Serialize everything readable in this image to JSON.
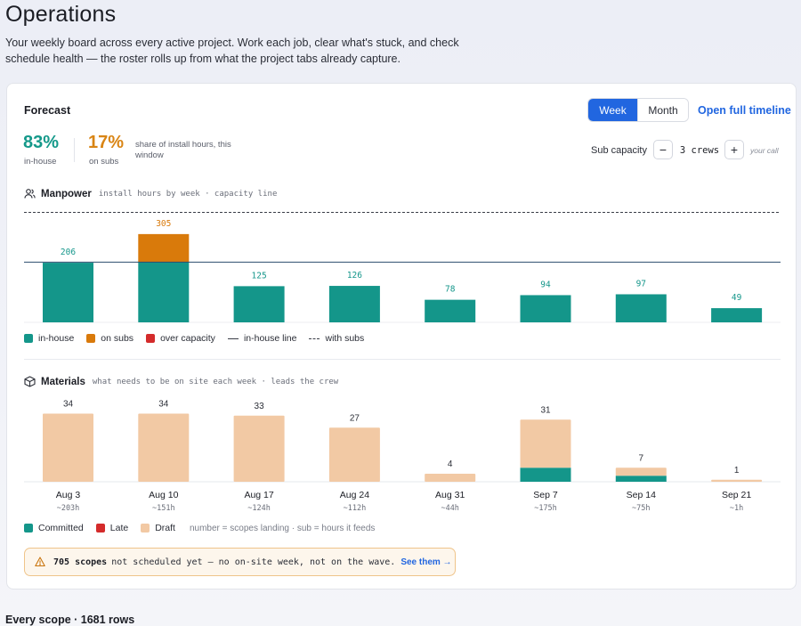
{
  "page": {
    "title": "Operations",
    "subtitle": "Your weekly board across every active project. Work each job, clear what's stuck, and check schedule health — the roster rolls up from what the project tabs already capture."
  },
  "forecast": {
    "title": "Forecast",
    "toggle": {
      "week": "Week",
      "month": "Month",
      "selected": "Week"
    },
    "timeline_link": "Open full timeline",
    "kpis": {
      "inhouse_pct": "83%",
      "inhouse_label": "in-house",
      "subs_pct": "17%",
      "subs_label": "on subs",
      "note": "share of install hours, this window"
    },
    "sub_capacity": {
      "label": "Sub capacity",
      "minus": "−",
      "value": "3 crews",
      "plus": "+",
      "hint": "your call"
    }
  },
  "manpower": {
    "title": "Manpower",
    "caption": "install hours by week · capacity line",
    "legend": {
      "inhouse": "in-house",
      "subs": "on subs",
      "over": "over capacity",
      "line": "in-house line",
      "with_subs": "with subs"
    }
  },
  "materials": {
    "title": "Materials",
    "caption": "what needs to be on site each week · leads the crew",
    "legend": {
      "committed": "Committed",
      "late": "Late",
      "draft": "Draft",
      "note": "number = scopes landing · sub = hours it feeds"
    }
  },
  "warning": {
    "count": "705 scopes",
    "text": "not scheduled yet — no on-site week, not on the wave.",
    "link": "See them →"
  },
  "bottom": {
    "title": "Every scope · 1681 rows"
  },
  "colors": {
    "inhouse": "#14968a",
    "subs": "#d97a0b",
    "over": "#d42b2b",
    "draft": "#f2c9a4",
    "committed": "#14968a",
    "accent": "#2166e0"
  },
  "chart_data": [
    {
      "type": "bar",
      "title": "Manpower",
      "categories": [
        "Aug 3",
        "Aug 10",
        "Aug 17",
        "Aug 24",
        "Aug 31",
        "Sep 7",
        "Sep 14",
        "Sep 21"
      ],
      "series": [
        {
          "name": "in-house",
          "values": [
            206,
            208,
            125,
            126,
            78,
            94,
            97,
            49
          ]
        },
        {
          "name": "on subs",
          "values": [
            0,
            97,
            0,
            0,
            0,
            0,
            0,
            0
          ]
        }
      ],
      "totals": [
        206,
        305,
        125,
        126,
        78,
        94,
        97,
        49
      ],
      "inhouse_line": 208,
      "with_subs_line": 380,
      "ylim": [
        0,
        400
      ],
      "legend": "bottom-left"
    },
    {
      "type": "bar",
      "title": "Materials",
      "categories": [
        "Aug 3",
        "Aug 10",
        "Aug 17",
        "Aug 24",
        "Aug 31",
        "Sep 7",
        "Sep 14",
        "Sep 21"
      ],
      "sublabels": [
        "~203h",
        "~151h",
        "~124h",
        "~112h",
        "~44h",
        "~175h",
        "~75h",
        "~1h"
      ],
      "series": [
        {
          "name": "Committed",
          "values": [
            0,
            0,
            0,
            0,
            0,
            7,
            3,
            0
          ]
        },
        {
          "name": "Draft",
          "values": [
            34,
            34,
            33,
            27,
            4,
            24,
            4,
            1
          ]
        }
      ],
      "totals": [
        34,
        34,
        33,
        27,
        4,
        31,
        7,
        1
      ],
      "ylim": [
        0,
        36
      ],
      "legend": "bottom-left"
    }
  ]
}
